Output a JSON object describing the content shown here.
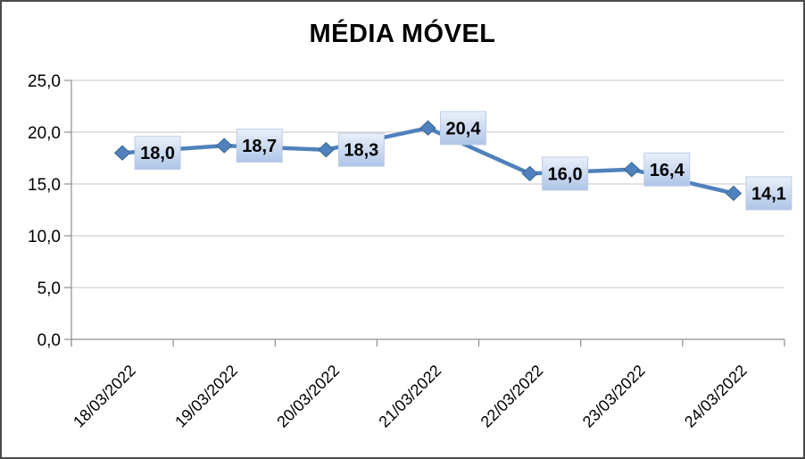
{
  "chart_data": {
    "type": "line",
    "title": "MÉDIA MÓVEL",
    "categories": [
      "18/03/2022",
      "19/03/2022",
      "20/03/2022",
      "21/03/2022",
      "22/03/2022",
      "23/03/2022",
      "24/03/2022"
    ],
    "values": [
      18.0,
      18.7,
      18.3,
      20.4,
      16.0,
      16.4,
      14.1
    ],
    "data_labels": [
      "18,0",
      "18,7",
      "18,3",
      "20,4",
      "16,0",
      "16,4",
      "14,1"
    ],
    "y_tick_labels": [
      "25,0",
      "20,0",
      "15,0",
      "10,0",
      "5,0",
      "0,0"
    ],
    "y_tick_values": [
      25,
      20,
      15,
      10,
      5,
      0
    ],
    "ylim": [
      0,
      25
    ],
    "xlabel": "",
    "ylabel": "",
    "grid": true,
    "legend": "none",
    "marker_shape": "diamond",
    "colors": {
      "line": "#4F81BD",
      "marker_fill": "#4F81BD",
      "marker_edge": "#3A6793",
      "gridline": "#C6C6C6",
      "axis": "#8E8E8E",
      "label_fill_top": "#EAF0F9",
      "label_fill_bottom": "#AEC5E8",
      "label_border": "#BDCCE7",
      "text": "#000000"
    }
  }
}
